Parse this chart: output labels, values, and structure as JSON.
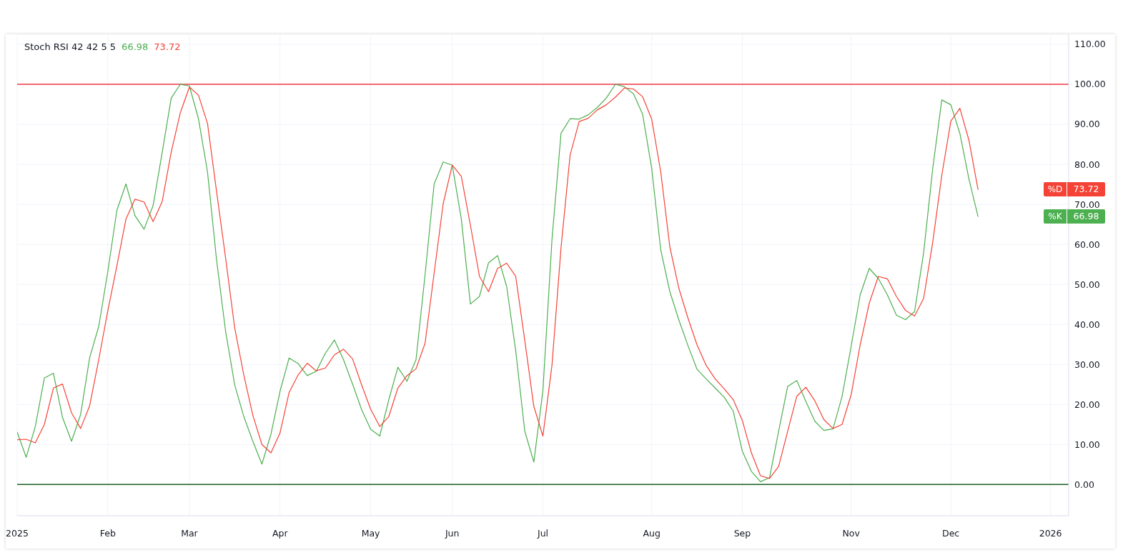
{
  "chart_data": {
    "type": "line",
    "title": "Stoch RSI 42 42 5 5",
    "annotations": [
      "66.98",
      "73.72"
    ],
    "categories": [
      "2025",
      null,
      null,
      null,
      null,
      null,
      null,
      null,
      null,
      null,
      "Feb",
      null,
      null,
      null,
      null,
      null,
      null,
      null,
      null,
      "Mar",
      null,
      null,
      null,
      null,
      null,
      null,
      null,
      null,
      null,
      "Apr",
      null,
      null,
      null,
      null,
      null,
      null,
      null,
      null,
      null,
      "May",
      null,
      null,
      null,
      null,
      null,
      null,
      null,
      null,
      "Jun",
      null,
      null,
      null,
      null,
      null,
      null,
      null,
      null,
      null,
      "Jul",
      null,
      null,
      null,
      null,
      null,
      null,
      null,
      null,
      null,
      null,
      null,
      "Aug",
      null,
      null,
      null,
      null,
      null,
      null,
      null,
      null,
      null,
      "Sep",
      null,
      null,
      null,
      null,
      null,
      null,
      null,
      null,
      null,
      null,
      null,
      "Nov",
      null,
      null,
      null,
      null,
      null,
      null,
      null,
      null,
      null,
      null,
      "Dec",
      null,
      null,
      null,
      null,
      null,
      null,
      null,
      null,
      null,
      null,
      "2026",
      null,
      null
    ],
    "series": [
      {
        "name": "%K",
        "color": "#4caf50",
        "values": [
          13.1,
          6.8,
          14.5,
          26.6,
          27.8,
          16.8,
          10.8,
          17.5,
          31.7,
          39.5,
          53.2,
          68.5,
          75.1,
          67.2,
          63.8,
          69.7,
          83.0,
          96.6,
          100,
          99.6,
          91.4,
          78.1,
          56.1,
          38.2,
          24.9,
          17.0,
          10.8,
          5.1,
          12.6,
          23.3,
          31.6,
          30.2,
          27.2,
          28.3,
          32.8,
          36.1,
          31.2,
          25.1,
          18.7,
          13.8,
          12.1,
          21.2,
          29.3,
          25.8,
          31.2,
          52.4,
          75.1,
          80.6,
          79.8,
          66.3,
          45.1,
          47.0,
          55.4,
          57.2,
          49.5,
          33.4,
          13.3,
          5.6,
          23.5,
          61.2,
          87.8,
          91.4,
          91.3,
          92.4,
          94.2,
          96.6,
          100,
          99.4,
          97.6,
          92.5,
          79.0,
          58.6,
          48.2,
          41.1,
          34.7,
          28.8,
          26.4,
          24.1,
          21.8,
          18.3,
          8.3,
          3.3,
          0.7,
          1.7,
          13.3,
          24.5,
          26.0,
          20.8,
          15.8,
          13.5,
          13.9,
          22.0,
          34.5,
          47.4,
          54.0,
          51.5,
          47.4,
          42.3,
          41.2,
          43.2,
          57.9,
          78.9,
          96.1,
          94.9,
          87.7,
          76.3,
          66.98,
          null,
          null,
          null,
          null,
          null,
          null,
          null,
          null,
          null,
          null
        ]
      },
      {
        "name": "%D",
        "color": "#f44336",
        "values": [
          11.2,
          11.3,
          10.4,
          15.0,
          24.1,
          25.1,
          17.9,
          14.0,
          19.7,
          31.2,
          43.4,
          54.6,
          66.3,
          71.3,
          70.6,
          65.7,
          70.7,
          83.1,
          92.9,
          99.3,
          97.3,
          90.2,
          73.2,
          56.5,
          39.1,
          27.4,
          17.3,
          10.0,
          7.9,
          12.9,
          23.0,
          27.4,
          30.3,
          28.4,
          29.1,
          32.4,
          33.8,
          31.4,
          24.9,
          18.8,
          14.5,
          17.0,
          24.1,
          27.2,
          28.9,
          35.3,
          52.8,
          70.2,
          79.8,
          77.0,
          64.8,
          52.0,
          48.2,
          54.0,
          55.3,
          52.0,
          36.0,
          19.5,
          12.1,
          29.8,
          59.2,
          82.3,
          90.7,
          91.5,
          93.6,
          94.9,
          96.8,
          99.1,
          98.8,
          96.9,
          91.3,
          78.1,
          59.4,
          49.0,
          41.6,
          34.9,
          29.8,
          26.4,
          23.9,
          21.2,
          16.0,
          7.9,
          2.2,
          1.5,
          4.5,
          13.3,
          22.0,
          24.3,
          20.9,
          16.2,
          14.0,
          15.0,
          22.4,
          34.9,
          45.3,
          52.0,
          51.4,
          47.0,
          43.5,
          42.1,
          46.5,
          60.5,
          77.2,
          90.8,
          94.0,
          86.0,
          73.72,
          null,
          null,
          null,
          null,
          null,
          null,
          null,
          null,
          null,
          null
        ]
      }
    ],
    "ylim": [
      -7.8,
      112.5
    ],
    "yticks": [
      {
        "value": 0,
        "label": "0.00"
      },
      {
        "value": 10,
        "label": "10.00"
      },
      {
        "value": 20,
        "label": "20.00"
      },
      {
        "value": 30,
        "label": "30.00"
      },
      {
        "value": 40,
        "label": "40.00"
      },
      {
        "value": 50,
        "label": "50.00"
      },
      {
        "value": 60,
        "label": "60.00"
      },
      {
        "value": 70,
        "label": "70.00"
      },
      {
        "value": 80,
        "label": "80.00"
      },
      {
        "value": 90,
        "label": "90.00"
      },
      {
        "value": 100,
        "label": "100.00"
      },
      {
        "value": 110,
        "label": "110.00"
      }
    ],
    "y2lim": [
      -7.8,
      112.5
    ],
    "y2ticks": [
      {
        "value": 73.72,
        "label": "73.72"
      },
      {
        "value": 66.98,
        "label": "66.98"
      }
    ],
    "ref_lines": [
      {
        "axis": "y",
        "value": 100,
        "color": "#f23645"
      },
      {
        "axis": "y",
        "value": 0,
        "color": "#1b5e20"
      }
    ],
    "grid": true,
    "legend": "right"
  }
}
